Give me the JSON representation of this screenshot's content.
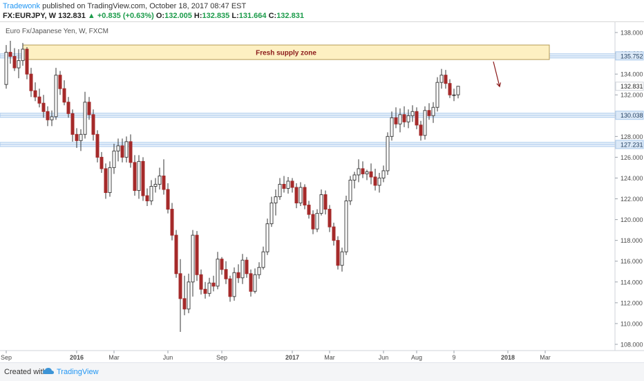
{
  "header": {
    "author": "Tradewonk",
    "published": "published on TradingView.com, October 18, 2017 08:47 EST",
    "symbol": "FX:EURJPY, W",
    "last": "132.831",
    "change": "▲ +0.835 (+0.63%)",
    "o_label": "O:",
    "o": "132.005",
    "h_label": "H:",
    "h": "132.835",
    "l_label": "L:",
    "l": "131.664",
    "c_label": "C:",
    "c": "132.831"
  },
  "footer": {
    "created": "Created with",
    "brand": "TradingView"
  },
  "chart_data": {
    "type": "candlestick",
    "subtitle": "Euro Fx/Japanese Yen, W, FXCM",
    "ylim": [
      107.4,
      139.0
    ],
    "y_ticks": [
      108,
      110,
      112,
      114,
      116,
      118,
      120,
      122,
      124,
      126,
      128,
      130,
      132,
      134,
      136,
      138
    ],
    "x_labels": [
      {
        "label": "Sep",
        "week": 0
      },
      {
        "label": "2016",
        "week": 17
      },
      {
        "label": "Mar",
        "week": 26
      },
      {
        "label": "Jun",
        "week": 39
      },
      {
        "label": "Sep",
        "week": 52
      },
      {
        "label": "2017",
        "week": 69
      },
      {
        "label": "Mar",
        "week": 78
      },
      {
        "label": "Jun",
        "week": 91
      },
      {
        "label": "Aug",
        "week": 99
      },
      {
        "label": "9",
        "week": 108
      },
      {
        "label": "2018",
        "week": 121
      },
      {
        "label": "Mar",
        "week": 130
      }
    ],
    "grid": false,
    "zones": [
      {
        "label": "Fresh supply zone",
        "from_week": 4,
        "to_week": 131,
        "low": 135.4,
        "high": 136.8,
        "color": "#fdf0c2"
      }
    ],
    "levels": [
      {
        "value": 135.752,
        "label": "135.752"
      },
      {
        "value": 130.038,
        "label": "130.038"
      },
      {
        "value": 127.231,
        "label": "127.231"
      }
    ],
    "last_price": {
      "value": 132.831,
      "label": "132.831"
    },
    "arrow": {
      "from_week": 117.5,
      "from_price": 135.2,
      "to_week": 119,
      "to_price": 132.8,
      "color": "#8b1a1a"
    },
    "colors": {
      "up": "#ffffff",
      "down": "#a52a2a",
      "wick": "#333333",
      "level": "#a9c9ec"
    },
    "candles": [
      {
        "o": 133.0,
        "h": 136.8,
        "l": 132.6,
        "c": 136.1
      },
      {
        "o": 136.1,
        "h": 137.2,
        "l": 135.0,
        "c": 135.7
      },
      {
        "o": 135.7,
        "h": 136.5,
        "l": 134.3,
        "c": 134.6
      },
      {
        "o": 134.6,
        "h": 136.4,
        "l": 133.6,
        "c": 135.3
      },
      {
        "o": 135.3,
        "h": 137.0,
        "l": 134.8,
        "c": 136.4
      },
      {
        "o": 136.4,
        "h": 136.6,
        "l": 133.5,
        "c": 134.0
      },
      {
        "o": 134.0,
        "h": 134.6,
        "l": 131.8,
        "c": 132.4
      },
      {
        "o": 132.4,
        "h": 133.2,
        "l": 131.4,
        "c": 131.8
      },
      {
        "o": 131.8,
        "h": 132.6,
        "l": 130.8,
        "c": 131.2
      },
      {
        "o": 131.2,
        "h": 132.0,
        "l": 129.8,
        "c": 130.4
      },
      {
        "o": 130.4,
        "h": 130.9,
        "l": 129.0,
        "c": 129.6
      },
      {
        "o": 129.6,
        "h": 130.5,
        "l": 129.0,
        "c": 129.9
      },
      {
        "o": 129.9,
        "h": 134.6,
        "l": 129.6,
        "c": 133.9
      },
      {
        "o": 133.9,
        "h": 134.3,
        "l": 132.0,
        "c": 132.6
      },
      {
        "o": 132.6,
        "h": 133.4,
        "l": 131.0,
        "c": 131.3
      },
      {
        "o": 131.3,
        "h": 131.8,
        "l": 129.8,
        "c": 130.2
      },
      {
        "o": 130.2,
        "h": 130.6,
        "l": 127.5,
        "c": 128.2
      },
      {
        "o": 128.2,
        "h": 128.8,
        "l": 126.9,
        "c": 127.6
      },
      {
        "o": 127.6,
        "h": 128.7,
        "l": 126.6,
        "c": 128.2
      },
      {
        "o": 128.2,
        "h": 132.3,
        "l": 127.8,
        "c": 131.3
      },
      {
        "o": 131.3,
        "h": 131.8,
        "l": 129.6,
        "c": 130.1
      },
      {
        "o": 130.1,
        "h": 130.6,
        "l": 127.6,
        "c": 128.2
      },
      {
        "o": 128.2,
        "h": 128.6,
        "l": 125.5,
        "c": 126.0
      },
      {
        "o": 126.0,
        "h": 126.5,
        "l": 124.5,
        "c": 124.9
      },
      {
        "o": 124.9,
        "h": 125.4,
        "l": 122.0,
        "c": 122.6
      },
      {
        "o": 122.6,
        "h": 125.6,
        "l": 122.2,
        "c": 125.0
      },
      {
        "o": 125.0,
        "h": 127.3,
        "l": 124.4,
        "c": 126.6
      },
      {
        "o": 126.6,
        "h": 127.8,
        "l": 125.6,
        "c": 127.1
      },
      {
        "o": 127.1,
        "h": 127.8,
        "l": 125.5,
        "c": 126.0
      },
      {
        "o": 126.0,
        "h": 128.0,
        "l": 125.5,
        "c": 127.5
      },
      {
        "o": 127.5,
        "h": 128.2,
        "l": 125.0,
        "c": 125.5
      },
      {
        "o": 125.5,
        "h": 126.2,
        "l": 122.3,
        "c": 122.8
      },
      {
        "o": 122.8,
        "h": 126.2,
        "l": 122.0,
        "c": 125.6
      },
      {
        "o": 125.6,
        "h": 126.0,
        "l": 121.8,
        "c": 122.3
      },
      {
        "o": 122.3,
        "h": 123.0,
        "l": 121.3,
        "c": 121.8
      },
      {
        "o": 121.8,
        "h": 123.8,
        "l": 121.4,
        "c": 123.2
      },
      {
        "o": 123.2,
        "h": 124.0,
        "l": 122.6,
        "c": 123.4
      },
      {
        "o": 123.4,
        "h": 125.0,
        "l": 122.9,
        "c": 124.2
      },
      {
        "o": 124.2,
        "h": 125.8,
        "l": 122.4,
        "c": 122.9
      },
      {
        "o": 122.9,
        "h": 123.5,
        "l": 120.6,
        "c": 121.0
      },
      {
        "o": 121.0,
        "h": 121.6,
        "l": 118.0,
        "c": 118.5
      },
      {
        "o": 118.5,
        "h": 119.0,
        "l": 114.4,
        "c": 114.8
      },
      {
        "o": 114.8,
        "h": 116.2,
        "l": 109.2,
        "c": 112.4
      },
      {
        "o": 112.4,
        "h": 114.6,
        "l": 110.8,
        "c": 111.4
      },
      {
        "o": 111.4,
        "h": 114.8,
        "l": 111.0,
        "c": 114.0
      },
      {
        "o": 114.0,
        "h": 119.0,
        "l": 112.6,
        "c": 118.5
      },
      {
        "o": 118.5,
        "h": 118.9,
        "l": 114.1,
        "c": 114.7
      },
      {
        "o": 114.7,
        "h": 115.2,
        "l": 112.8,
        "c": 113.3
      },
      {
        "o": 113.3,
        "h": 114.0,
        "l": 112.4,
        "c": 112.9
      },
      {
        "o": 112.9,
        "h": 114.4,
        "l": 112.6,
        "c": 113.9
      },
      {
        "o": 113.9,
        "h": 114.6,
        "l": 113.1,
        "c": 113.6
      },
      {
        "o": 113.6,
        "h": 116.9,
        "l": 113.3,
        "c": 116.2
      },
      {
        "o": 116.2,
        "h": 116.4,
        "l": 114.7,
        "c": 115.2
      },
      {
        "o": 115.2,
        "h": 116.0,
        "l": 113.8,
        "c": 114.3
      },
      {
        "o": 114.3,
        "h": 114.6,
        "l": 112.1,
        "c": 112.6
      },
      {
        "o": 112.6,
        "h": 115.4,
        "l": 112.2,
        "c": 114.9
      },
      {
        "o": 114.9,
        "h": 115.7,
        "l": 113.9,
        "c": 114.4
      },
      {
        "o": 114.4,
        "h": 116.7,
        "l": 113.8,
        "c": 116.1
      },
      {
        "o": 116.1,
        "h": 116.4,
        "l": 114.4,
        "c": 114.8
      },
      {
        "o": 114.8,
        "h": 115.2,
        "l": 112.6,
        "c": 113.1
      },
      {
        "o": 113.1,
        "h": 115.3,
        "l": 112.9,
        "c": 114.7
      },
      {
        "o": 114.7,
        "h": 115.9,
        "l": 114.3,
        "c": 115.4
      },
      {
        "o": 115.4,
        "h": 117.4,
        "l": 115.2,
        "c": 116.9
      },
      {
        "o": 116.9,
        "h": 120.1,
        "l": 116.6,
        "c": 119.6
      },
      {
        "o": 119.6,
        "h": 122.2,
        "l": 119.3,
        "c": 121.6
      },
      {
        "o": 121.6,
        "h": 122.9,
        "l": 120.4,
        "c": 122.2
      },
      {
        "o": 122.2,
        "h": 124.0,
        "l": 121.9,
        "c": 123.4
      },
      {
        "o": 123.4,
        "h": 124.2,
        "l": 122.6,
        "c": 123.0
      },
      {
        "o": 123.0,
        "h": 124.1,
        "l": 122.5,
        "c": 123.7
      },
      {
        "o": 123.7,
        "h": 124.0,
        "l": 122.6,
        "c": 123.1
      },
      {
        "o": 123.1,
        "h": 123.5,
        "l": 121.1,
        "c": 121.6
      },
      {
        "o": 121.6,
        "h": 123.6,
        "l": 121.3,
        "c": 123.1
      },
      {
        "o": 123.1,
        "h": 123.4,
        "l": 121.0,
        "c": 121.4
      },
      {
        "o": 121.4,
        "h": 121.8,
        "l": 120.1,
        "c": 120.5
      },
      {
        "o": 120.5,
        "h": 120.9,
        "l": 118.6,
        "c": 119.1
      },
      {
        "o": 119.1,
        "h": 121.0,
        "l": 118.8,
        "c": 120.6
      },
      {
        "o": 120.6,
        "h": 122.9,
        "l": 120.4,
        "c": 122.4
      },
      {
        "o": 122.4,
        "h": 122.8,
        "l": 120.5,
        "c": 121.0
      },
      {
        "o": 121.0,
        "h": 121.4,
        "l": 118.8,
        "c": 119.3
      },
      {
        "o": 119.3,
        "h": 119.7,
        "l": 117.5,
        "c": 118.0
      },
      {
        "o": 118.0,
        "h": 118.4,
        "l": 115.2,
        "c": 115.6
      },
      {
        "o": 115.6,
        "h": 117.3,
        "l": 115.0,
        "c": 116.9
      },
      {
        "o": 116.9,
        "h": 122.3,
        "l": 116.6,
        "c": 121.8
      },
      {
        "o": 121.8,
        "h": 124.2,
        "l": 121.4,
        "c": 123.8
      },
      {
        "o": 123.8,
        "h": 124.6,
        "l": 123.0,
        "c": 124.3
      },
      {
        "o": 124.3,
        "h": 125.8,
        "l": 123.6,
        "c": 124.9
      },
      {
        "o": 124.9,
        "h": 125.6,
        "l": 124.0,
        "c": 124.4
      },
      {
        "o": 124.4,
        "h": 124.8,
        "l": 123.8,
        "c": 124.6
      },
      {
        "o": 124.6,
        "h": 125.4,
        "l": 123.4,
        "c": 124.1
      },
      {
        "o": 124.1,
        "h": 124.9,
        "l": 122.8,
        "c": 123.3
      },
      {
        "o": 123.3,
        "h": 124.5,
        "l": 122.6,
        "c": 124.0
      },
      {
        "o": 124.0,
        "h": 125.2,
        "l": 123.6,
        "c": 124.7
      },
      {
        "o": 124.7,
        "h": 128.4,
        "l": 124.3,
        "c": 128.0
      },
      {
        "o": 128.0,
        "h": 130.4,
        "l": 127.6,
        "c": 129.8
      },
      {
        "o": 129.8,
        "h": 130.8,
        "l": 128.8,
        "c": 129.2
      },
      {
        "o": 129.2,
        "h": 130.7,
        "l": 128.4,
        "c": 130.1
      },
      {
        "o": 130.1,
        "h": 130.9,
        "l": 128.9,
        "c": 129.4
      },
      {
        "o": 129.4,
        "h": 130.6,
        "l": 128.8,
        "c": 130.0
      },
      {
        "o": 130.0,
        "h": 131.0,
        "l": 129.4,
        "c": 130.4
      },
      {
        "o": 130.4,
        "h": 130.8,
        "l": 128.7,
        "c": 129.1
      },
      {
        "o": 129.1,
        "h": 129.5,
        "l": 127.6,
        "c": 128.1
      },
      {
        "o": 128.1,
        "h": 130.9,
        "l": 127.7,
        "c": 130.5
      },
      {
        "o": 130.5,
        "h": 131.2,
        "l": 129.6,
        "c": 130.0
      },
      {
        "o": 130.0,
        "h": 131.3,
        "l": 129.3,
        "c": 130.8
      },
      {
        "o": 130.8,
        "h": 133.7,
        "l": 130.4,
        "c": 133.2
      },
      {
        "o": 133.2,
        "h": 134.5,
        "l": 132.6,
        "c": 133.9
      },
      {
        "o": 133.9,
        "h": 134.4,
        "l": 132.6,
        "c": 133.1
      },
      {
        "o": 133.1,
        "h": 133.5,
        "l": 131.7,
        "c": 132.0
      },
      {
        "o": 132.0,
        "h": 132.6,
        "l": 131.4,
        "c": 132.0
      },
      {
        "o": 132.005,
        "h": 132.835,
        "l": 131.664,
        "c": 132.831
      }
    ]
  }
}
